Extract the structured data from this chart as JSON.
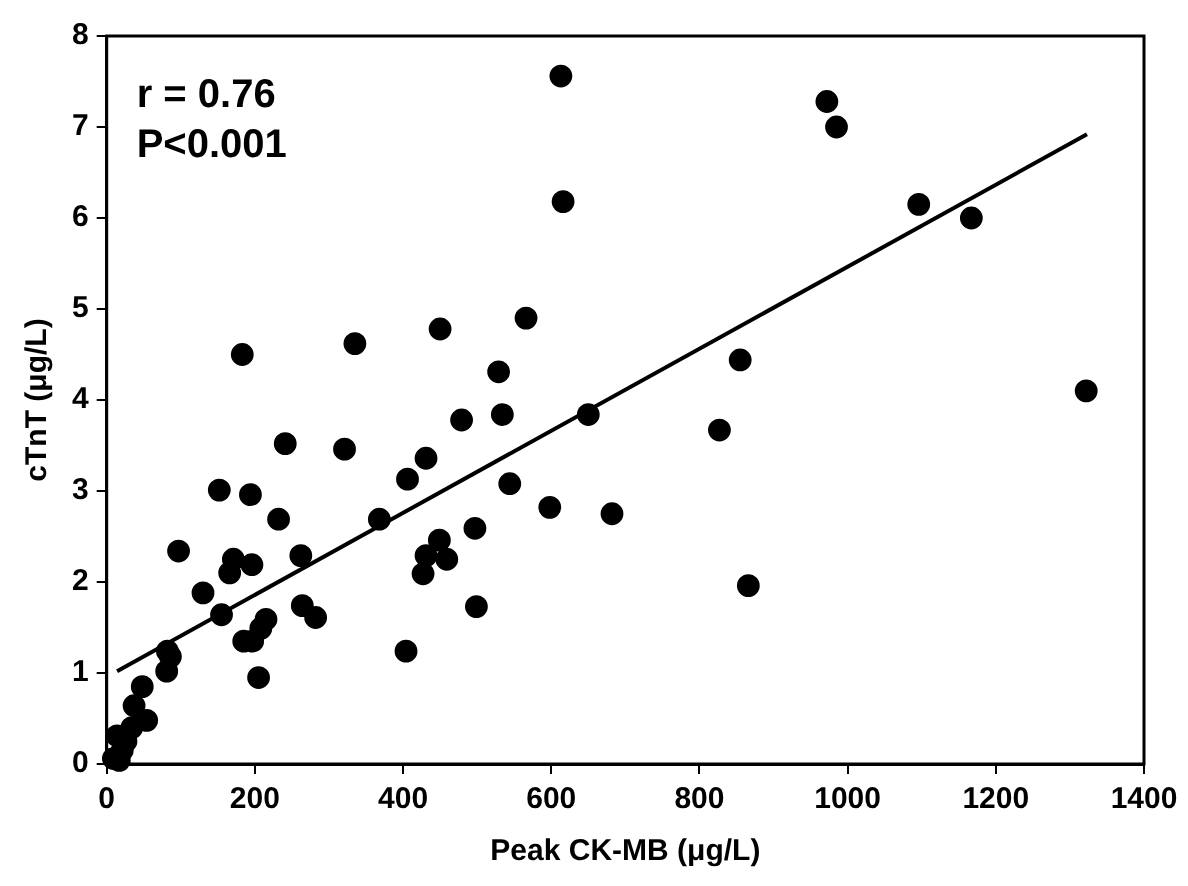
{
  "chart_data": {
    "type": "scatter",
    "xlabel": "Peak CK-MB (μg/L)",
    "ylabel": "cTnT (μg/L)",
    "xlim": [
      0,
      1400
    ],
    "xticks": [
      0,
      200,
      400,
      600,
      800,
      1000,
      1200,
      1400
    ],
    "ylim": [
      0,
      8
    ],
    "yticks": [
      0,
      1,
      2,
      3,
      4,
      5,
      6,
      7,
      8
    ],
    "grid": false,
    "legend": false,
    "marker": "circle",
    "annotations": [
      "r = 0.76",
      "P<0.001"
    ],
    "series": [
      {
        "color": "#000000",
        "x": [
          613,
          616,
          450,
          566,
          972,
          985,
          1096,
          1167,
          855,
          827,
          1322,
          682,
          866,
          650,
          183,
          335,
          529,
          534,
          479,
          241,
          321,
          431,
          406,
          152,
          194,
          544,
          598,
          368,
          232,
          97,
          262,
          171,
          166,
          196,
          497,
          449,
          431,
          459,
          427,
          130,
          155,
          215,
          208,
          264,
          282,
          499,
          185,
          197,
          82,
          86,
          81,
          404,
          205,
          48,
          37,
          54,
          34,
          14,
          26,
          21,
          9,
          17
        ],
        "values": [
          7.56,
          6.18,
          4.78,
          4.9,
          7.28,
          7.0,
          6.15,
          6.0,
          4.44,
          3.67,
          4.1,
          2.75,
          1.96,
          3.84,
          4.5,
          4.62,
          4.31,
          3.84,
          3.78,
          3.52,
          3.46,
          3.36,
          3.13,
          3.01,
          2.96,
          3.08,
          2.82,
          2.69,
          2.69,
          2.34,
          2.29,
          2.25,
          2.1,
          2.19,
          2.59,
          2.46,
          2.29,
          2.25,
          2.09,
          1.88,
          1.64,
          1.59,
          1.49,
          1.74,
          1.61,
          1.73,
          1.35,
          1.35,
          1.24,
          1.18,
          1.02,
          1.24,
          0.95,
          0.85,
          0.64,
          0.48,
          0.4,
          0.31,
          0.25,
          0.15,
          0.06,
          0.04
        ]
      },
      {
        "type": "line",
        "color": "#000000",
        "marker": "none",
        "x": [
          14,
          1323
        ],
        "values": [
          1.02,
          6.92
        ]
      }
    ]
  }
}
